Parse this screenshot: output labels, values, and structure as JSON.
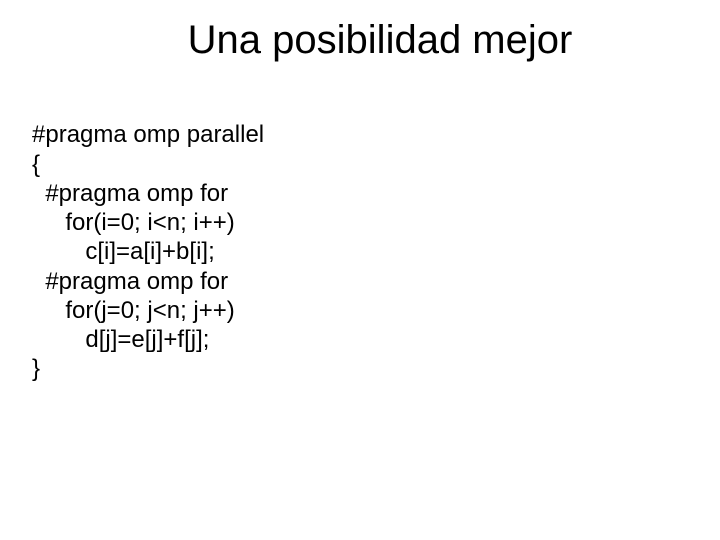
{
  "slide": {
    "title": "Una posibilidad mejor",
    "code_lines": {
      "l0": "#pragma omp parallel",
      "l1": "{",
      "l2": "  #pragma omp for",
      "l3": "     for(i=0; i<n; i++)",
      "l4": "        c[i]=a[i]+b[i];",
      "l5": "  #pragma omp for",
      "l6": "     for(j=0; j<n; j++)",
      "l7": "        d[j]=e[j]+f[j];",
      "l8": "}"
    }
  },
  "style": {
    "background_color": "#ffffff",
    "text_color": "#000000",
    "title_fontsize": 40,
    "body_fontsize": 24,
    "font_family": "Arial"
  }
}
